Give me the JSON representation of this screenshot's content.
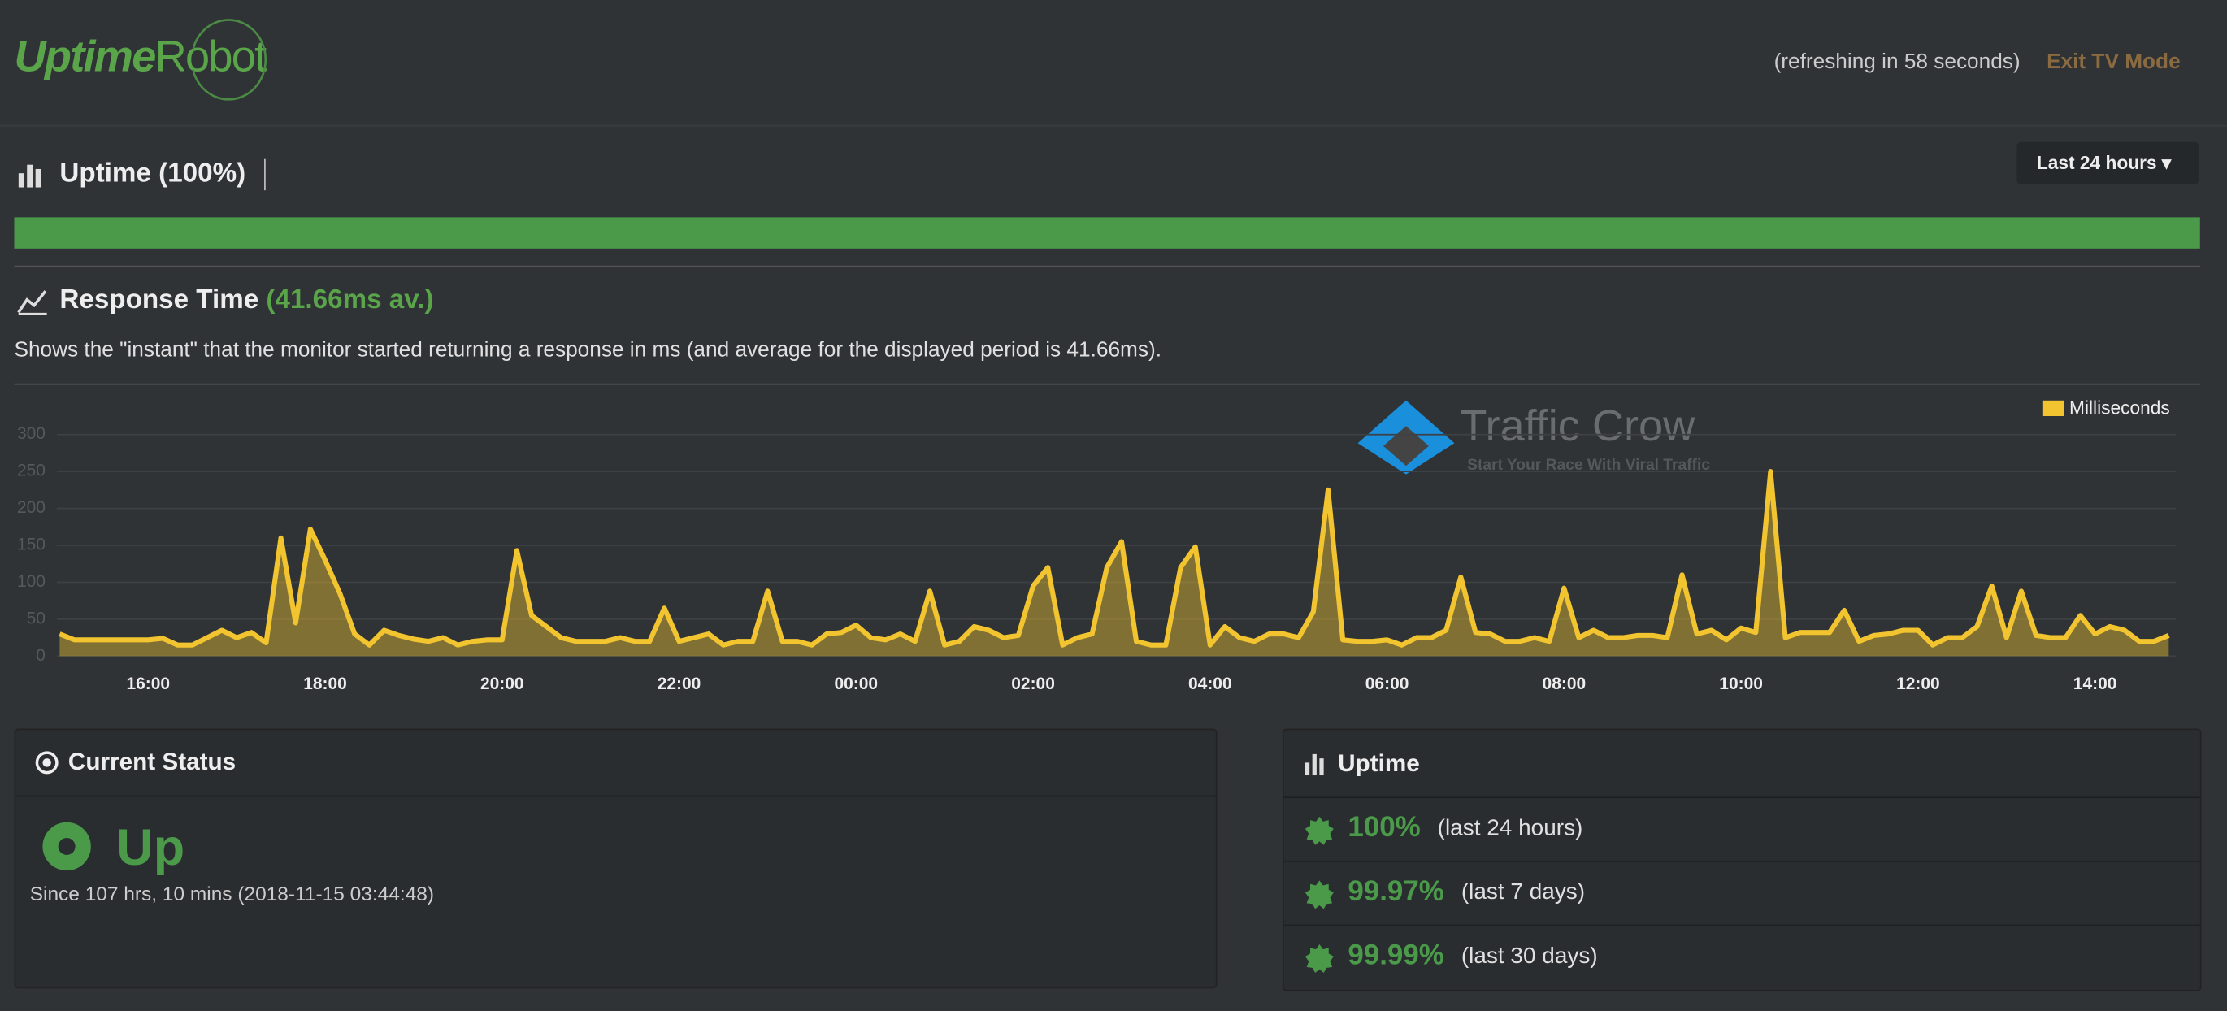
{
  "header": {
    "logo_a": "Uptime",
    "logo_b": "Robot",
    "refresh": "(refreshing in 58 seconds)",
    "exit": "Exit TV Mode"
  },
  "uptime_section": {
    "title": "Uptime (100%)",
    "period": "Last 24 hours",
    "bar_value": 100
  },
  "response": {
    "title": "Response Time",
    "average": "(41.66ms av.)",
    "description": "Shows the \"instant\" that the monitor started returning a response in ms (and average for the displayed period is 41.66ms)."
  },
  "watermark": {
    "name": "Traffic Crow",
    "tagline": "Start Your Race With Viral Traffic"
  },
  "chart_data": {
    "type": "line",
    "categories": [
      null,
      null,
      null,
      null,
      null,
      null,
      "16:00",
      null,
      null,
      null,
      null,
      null,
      null,
      null,
      null,
      null,
      null,
      null,
      "18:00",
      null,
      null,
      null,
      null,
      null,
      null,
      null,
      null,
      null,
      null,
      null,
      "20:00",
      null,
      null,
      null,
      null,
      null,
      null,
      null,
      null,
      null,
      null,
      null,
      "22:00",
      null,
      null,
      null,
      null,
      null,
      null,
      null,
      null,
      null,
      null,
      null,
      "00:00",
      null,
      null,
      null,
      null,
      null,
      null,
      null,
      null,
      null,
      null,
      null,
      "02:00",
      null,
      null,
      null,
      null,
      null,
      null,
      null,
      null,
      null,
      null,
      null,
      "04:00",
      null,
      null,
      null,
      null,
      null,
      null,
      null,
      null,
      null,
      null,
      null,
      "06:00",
      null,
      null,
      null,
      null,
      null,
      null,
      null,
      null,
      null,
      null,
      null,
      "08:00",
      null,
      null,
      null,
      null,
      null,
      null,
      null,
      null,
      null,
      null,
      null,
      "10:00",
      null,
      null,
      null,
      null,
      null,
      null,
      null,
      null,
      null,
      null,
      null,
      "12:00",
      null,
      null,
      null,
      null,
      null,
      null,
      null,
      null,
      null,
      null,
      null,
      "14:00",
      null,
      null,
      null,
      null,
      null
    ],
    "series": [
      {
        "name": "Milliseconds",
        "color": "#f2c530",
        "values": [
          30,
          22,
          22,
          22,
          22,
          22,
          22,
          24,
          15,
          15,
          25,
          35,
          25,
          32,
          18,
          160,
          45,
          172,
          130,
          85,
          30,
          15,
          35,
          28,
          23,
          20,
          25,
          15,
          20,
          22,
          22,
          143,
          55,
          40,
          25,
          20,
          20,
          20,
          25,
          20,
          20,
          65,
          20,
          25,
          30,
          15,
          20,
          20,
          88,
          20,
          20,
          15,
          30,
          32,
          42,
          25,
          22,
          30,
          20,
          88,
          15,
          20,
          40,
          35,
          25,
          28,
          95,
          120,
          15,
          25,
          30,
          120,
          155,
          20,
          15,
          15,
          120,
          148,
          15,
          40,
          25,
          20,
          30,
          30,
          25,
          60,
          225,
          22,
          20,
          20,
          22,
          15,
          25,
          25,
          35,
          107,
          32,
          30,
          20,
          20,
          25,
          20,
          92,
          25,
          35,
          25,
          25,
          28,
          28,
          25,
          110,
          30,
          35,
          22,
          38,
          32,
          250,
          25,
          32,
          32,
          32,
          62,
          20,
          28,
          30,
          35,
          35,
          15,
          25,
          25,
          40,
          95,
          25,
          88,
          28,
          25,
          25,
          55,
          30,
          40,
          35,
          20,
          20,
          28
        ]
      }
    ],
    "ylim": [
      0,
      300
    ],
    "yticks": [
      0,
      50,
      100,
      150,
      200,
      250,
      300
    ],
    "grid": true,
    "legend": "top-right"
  },
  "current_status": {
    "title": "Current Status",
    "state": "Up",
    "since": "Since 107 hrs, 10 mins (2018-11-15 03:44:48)"
  },
  "uptime_panel": {
    "title": "Uptime",
    "rows": [
      {
        "value": "100%",
        "period": "(last 24 hours)"
      },
      {
        "value": "99.97%",
        "period": "(last 7 days)"
      },
      {
        "value": "99.99%",
        "period": "(last 30 days)"
      }
    ]
  }
}
